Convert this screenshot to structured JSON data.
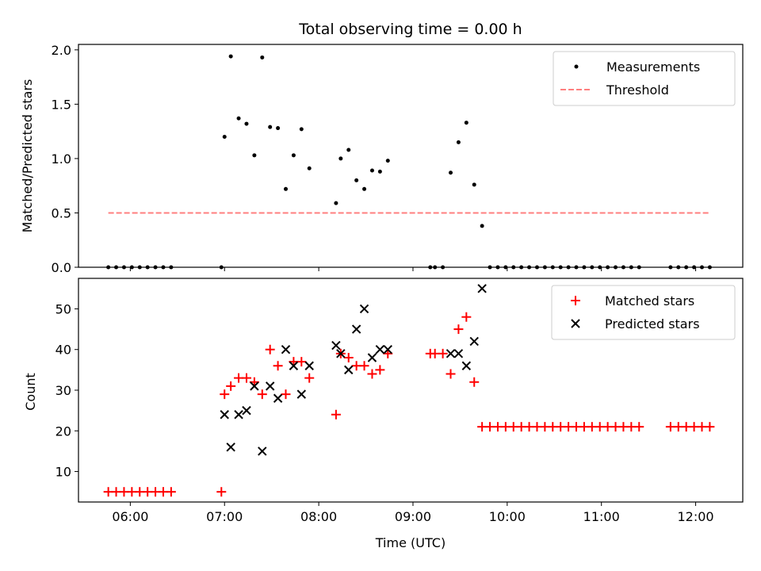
{
  "chart_data": [
    {
      "type": "scatter",
      "title": "Total observing time = 0.00 h",
      "xlabel": "",
      "ylabel": "Matched/Predicted stars",
      "xlim": [
        "05:27",
        "12:30"
      ],
      "ylim": [
        0,
        2.05
      ],
      "yticks": [
        "0.0",
        "0.5",
        "1.0",
        "1.5",
        "2.0"
      ],
      "legend": {
        "placement": "top-right",
        "entries": [
          "Measurements",
          "Threshold"
        ]
      },
      "series": [
        {
          "name": "Measurements",
          "marker": "dot",
          "color": "#000000",
          "points": [
            [
              "05:46",
              0
            ],
            [
              "05:51",
              0
            ],
            [
              "05:56",
              0
            ],
            [
              "06:01",
              0
            ],
            [
              "06:06",
              0
            ],
            [
              "06:11",
              0
            ],
            [
              "06:16",
              0
            ],
            [
              "06:21",
              0
            ],
            [
              "06:26",
              0
            ],
            [
              "06:58",
              0
            ],
            [
              "07:00",
              1.2
            ],
            [
              "07:04",
              1.94
            ],
            [
              "07:09",
              1.37
            ],
            [
              "07:14",
              1.32
            ],
            [
              "07:19",
              1.03
            ],
            [
              "07:24",
              1.93
            ],
            [
              "07:29",
              1.29
            ],
            [
              "07:34",
              1.28
            ],
            [
              "07:39",
              0.72
            ],
            [
              "07:44",
              1.03
            ],
            [
              "07:49",
              1.27
            ],
            [
              "07:54",
              0.91
            ],
            [
              "08:11",
              0.59
            ],
            [
              "08:14",
              1.0
            ],
            [
              "08:19",
              1.08
            ],
            [
              "08:24",
              0.8
            ],
            [
              "08:29",
              0.72
            ],
            [
              "08:34",
              0.89
            ],
            [
              "08:39",
              0.88
            ],
            [
              "08:44",
              0.98
            ],
            [
              "09:11",
              0
            ],
            [
              "09:14",
              0
            ],
            [
              "09:19",
              0
            ],
            [
              "09:24",
              0.87
            ],
            [
              "09:29",
              1.15
            ],
            [
              "09:34",
              1.33
            ],
            [
              "09:39",
              0.76
            ],
            [
              "09:44",
              0.38
            ],
            [
              "09:49",
              0
            ],
            [
              "09:54",
              0
            ],
            [
              "09:59",
              0
            ],
            [
              "10:04",
              0
            ],
            [
              "10:09",
              0
            ],
            [
              "10:14",
              0
            ],
            [
              "10:19",
              0
            ],
            [
              "10:24",
              0
            ],
            [
              "10:29",
              0
            ],
            [
              "10:34",
              0
            ],
            [
              "10:39",
              0
            ],
            [
              "10:44",
              0
            ],
            [
              "10:49",
              0
            ],
            [
              "10:54",
              0
            ],
            [
              "10:59",
              0
            ],
            [
              "11:04",
              0
            ],
            [
              "11:09",
              0
            ],
            [
              "11:14",
              0
            ],
            [
              "11:19",
              0
            ],
            [
              "11:24",
              0
            ],
            [
              "11:44",
              0
            ],
            [
              "11:49",
              0
            ],
            [
              "11:54",
              0
            ],
            [
              "11:59",
              0
            ],
            [
              "12:04",
              0
            ],
            [
              "12:09",
              0
            ]
          ]
        },
        {
          "name": "Threshold",
          "marker": "dashed-line",
          "color": "#ff7f7f",
          "points": [
            [
              "05:46",
              0.5
            ],
            [
              "12:09",
              0.5
            ]
          ]
        }
      ]
    },
    {
      "type": "scatter",
      "title": "",
      "xlabel": "Time (UTC)",
      "ylabel": "Count",
      "xlim": [
        "05:27",
        "12:30"
      ],
      "ylim": [
        2.5,
        57.5
      ],
      "xticks": [
        "06:00",
        "07:00",
        "08:00",
        "09:00",
        "10:00",
        "11:00",
        "12:00"
      ],
      "yticks": [
        "10",
        "20",
        "30",
        "40",
        "50"
      ],
      "legend": {
        "placement": "top-right",
        "entries": [
          "Matched stars",
          "Predicted stars"
        ]
      },
      "series": [
        {
          "name": "Matched stars",
          "marker": "plus",
          "color": "#ff0000",
          "points": [
            [
              "05:46",
              5
            ],
            [
              "05:51",
              5
            ],
            [
              "05:56",
              5
            ],
            [
              "06:01",
              5
            ],
            [
              "06:06",
              5
            ],
            [
              "06:11",
              5
            ],
            [
              "06:16",
              5
            ],
            [
              "06:21",
              5
            ],
            [
              "06:26",
              5
            ],
            [
              "06:58",
              5
            ],
            [
              "07:00",
              29
            ],
            [
              "07:04",
              31
            ],
            [
              "07:09",
              33
            ],
            [
              "07:14",
              33
            ],
            [
              "07:19",
              32
            ],
            [
              "07:24",
              29
            ],
            [
              "07:29",
              40
            ],
            [
              "07:34",
              36
            ],
            [
              "07:39",
              29
            ],
            [
              "07:44",
              37
            ],
            [
              "07:49",
              37
            ],
            [
              "07:54",
              33
            ],
            [
              "08:11",
              24
            ],
            [
              "08:14",
              39
            ],
            [
              "08:19",
              38
            ],
            [
              "08:24",
              36
            ],
            [
              "08:29",
              36
            ],
            [
              "08:34",
              34
            ],
            [
              "08:39",
              35
            ],
            [
              "08:44",
              39
            ],
            [
              "09:11",
              39
            ],
            [
              "09:14",
              39
            ],
            [
              "09:19",
              39
            ],
            [
              "09:24",
              34
            ],
            [
              "09:29",
              45
            ],
            [
              "09:34",
              48
            ],
            [
              "09:39",
              32
            ],
            [
              "09:44",
              21
            ],
            [
              "09:49",
              21
            ],
            [
              "09:54",
              21
            ],
            [
              "09:59",
              21
            ],
            [
              "10:04",
              21
            ],
            [
              "10:09",
              21
            ],
            [
              "10:14",
              21
            ],
            [
              "10:19",
              21
            ],
            [
              "10:24",
              21
            ],
            [
              "10:29",
              21
            ],
            [
              "10:34",
              21
            ],
            [
              "10:39",
              21
            ],
            [
              "10:44",
              21
            ],
            [
              "10:49",
              21
            ],
            [
              "10:54",
              21
            ],
            [
              "10:59",
              21
            ],
            [
              "11:04",
              21
            ],
            [
              "11:09",
              21
            ],
            [
              "11:14",
              21
            ],
            [
              "11:19",
              21
            ],
            [
              "11:24",
              21
            ],
            [
              "11:44",
              21
            ],
            [
              "11:49",
              21
            ],
            [
              "11:54",
              21
            ],
            [
              "11:59",
              21
            ],
            [
              "12:04",
              21
            ],
            [
              "12:09",
              21
            ]
          ]
        },
        {
          "name": "Predicted stars",
          "marker": "x",
          "color": "#000000",
          "points": [
            [
              "07:00",
              24
            ],
            [
              "07:04",
              16
            ],
            [
              "07:09",
              24
            ],
            [
              "07:14",
              25
            ],
            [
              "07:19",
              31
            ],
            [
              "07:24",
              15
            ],
            [
              "07:29",
              31
            ],
            [
              "07:34",
              28
            ],
            [
              "07:39",
              40
            ],
            [
              "07:44",
              36
            ],
            [
              "07:49",
              29
            ],
            [
              "07:54",
              36
            ],
            [
              "08:11",
              41
            ],
            [
              "08:14",
              39
            ],
            [
              "08:19",
              35
            ],
            [
              "08:24",
              45
            ],
            [
              "08:29",
              50
            ],
            [
              "08:34",
              38
            ],
            [
              "08:39",
              40
            ],
            [
              "08:44",
              40
            ],
            [
              "09:24",
              39
            ],
            [
              "09:29",
              39
            ],
            [
              "09:34",
              36
            ],
            [
              "09:39",
              42
            ],
            [
              "09:44",
              55
            ]
          ]
        }
      ]
    }
  ]
}
